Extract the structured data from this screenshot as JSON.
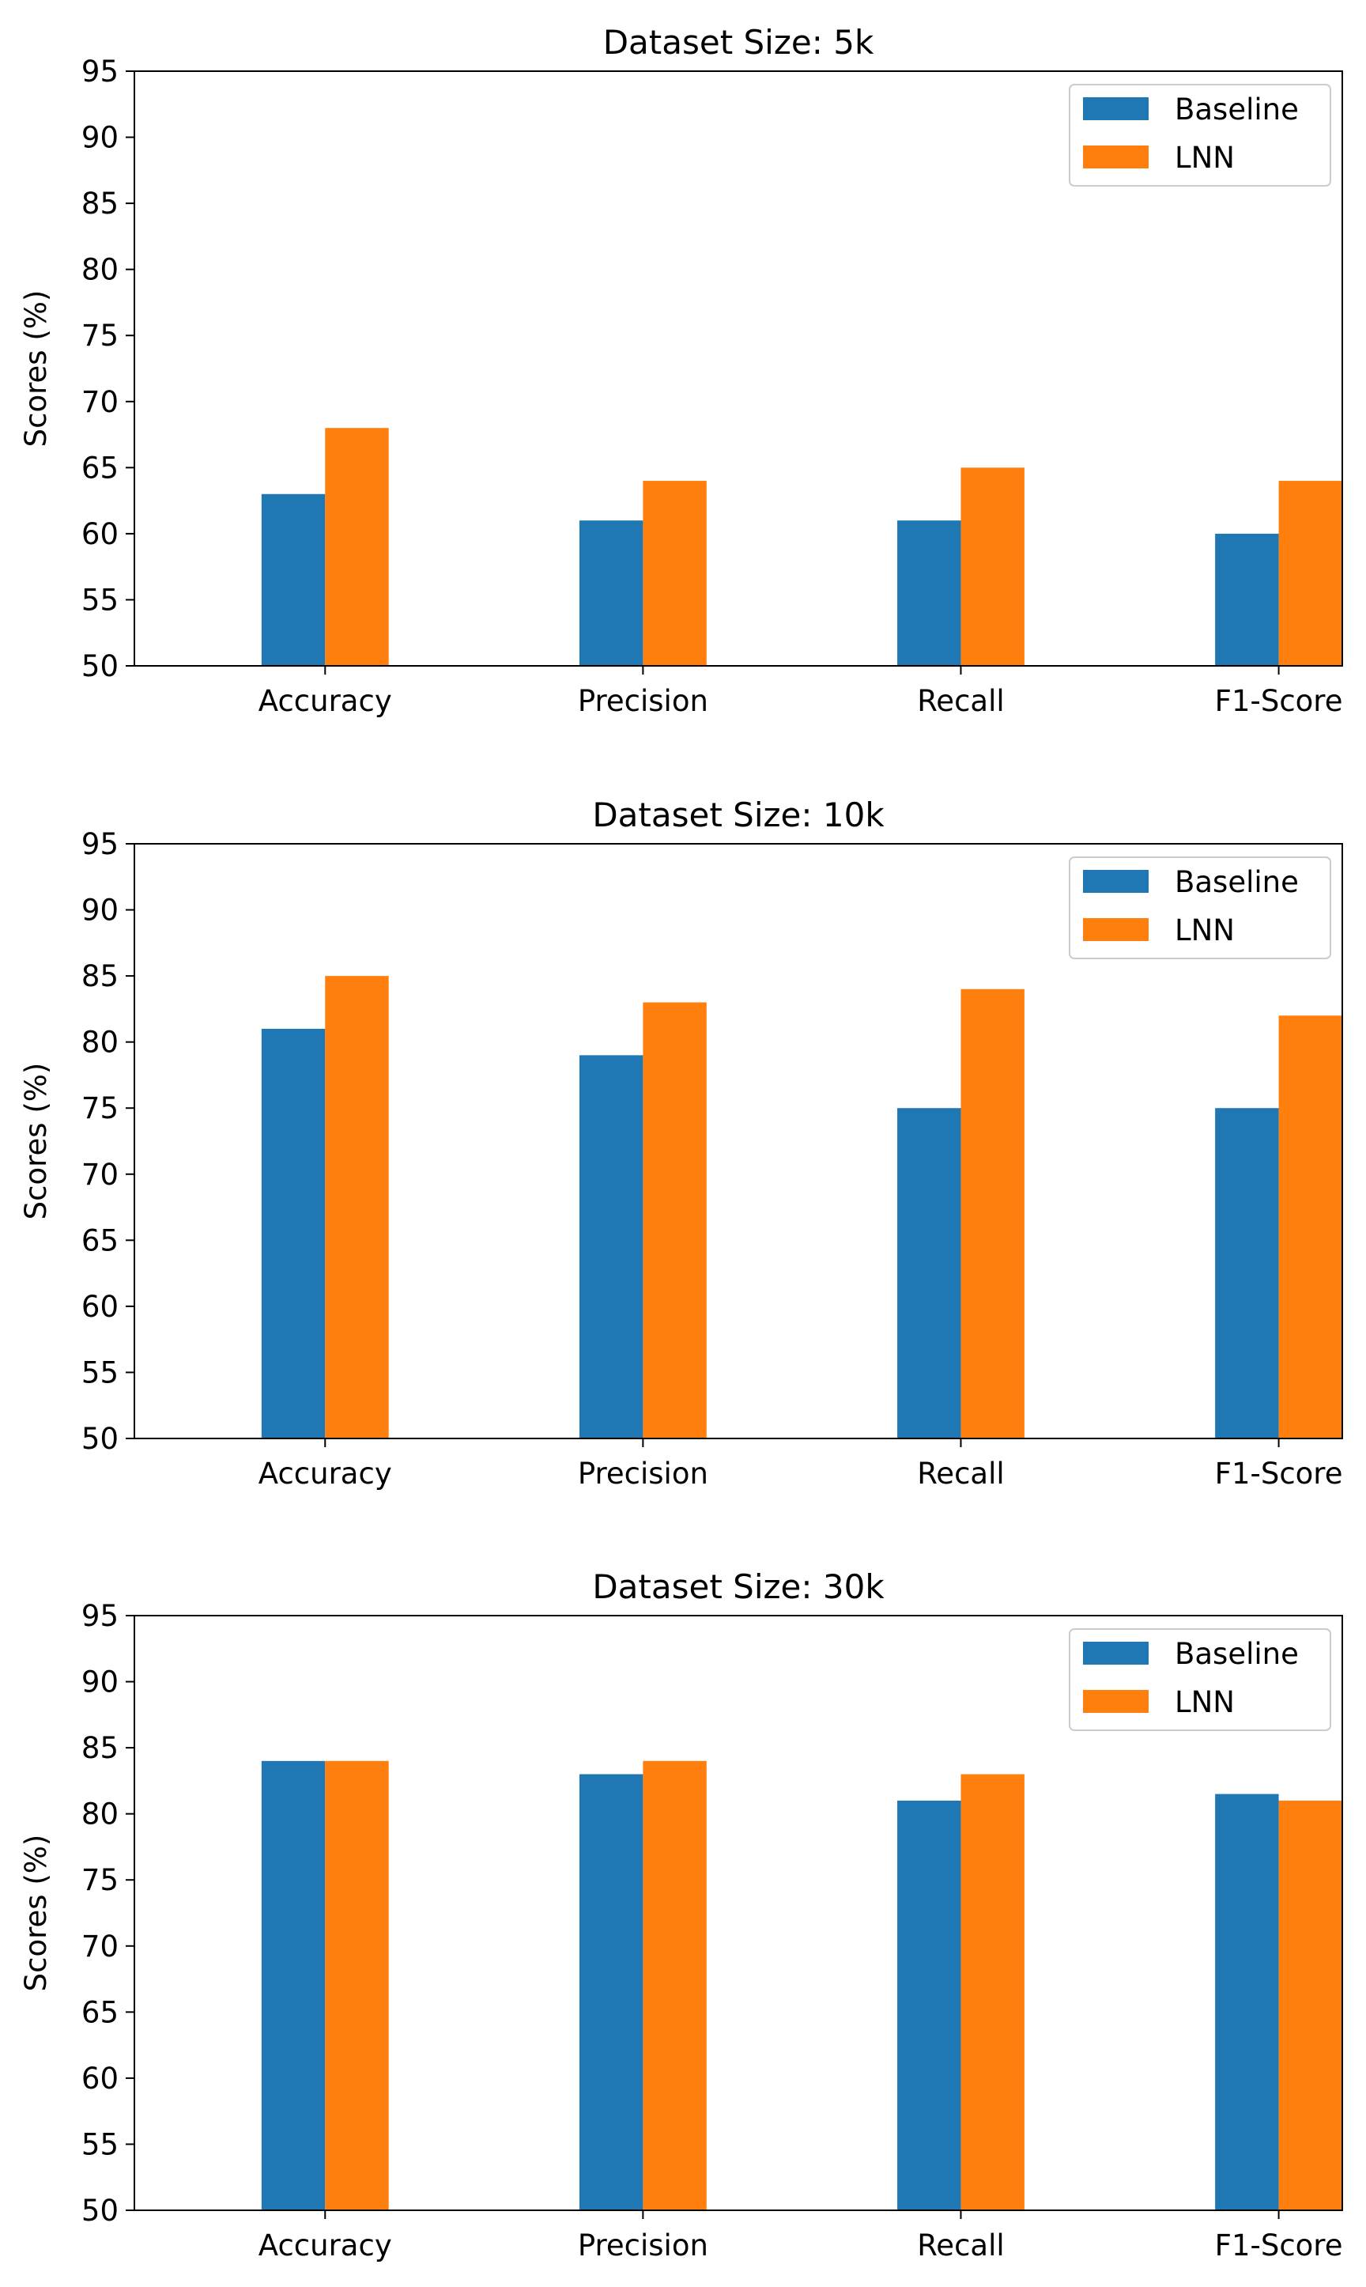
{
  "chart_data": [
    {
      "type": "bar",
      "title": "Dataset Size: 5k",
      "xlabel": "",
      "ylabel": "Scores (%)",
      "categories": [
        "Accuracy",
        "Precision",
        "Recall",
        "F1-Score"
      ],
      "series": [
        {
          "name": "Baseline",
          "values": [
            63,
            61,
            61,
            60
          ]
        },
        {
          "name": "LNN",
          "values": [
            68,
            64,
            65,
            64
          ]
        }
      ],
      "ylim": [
        50,
        95
      ],
      "yticks": [
        50,
        55,
        60,
        65,
        70,
        75,
        80,
        85,
        90,
        95
      ],
      "grid": false,
      "legend": "top-right"
    },
    {
      "type": "bar",
      "title": "Dataset Size: 10k",
      "xlabel": "",
      "ylabel": "Scores (%)",
      "categories": [
        "Accuracy",
        "Precision",
        "Recall",
        "F1-Score"
      ],
      "series": [
        {
          "name": "Baseline",
          "values": [
            81,
            79,
            75,
            75
          ]
        },
        {
          "name": "LNN",
          "values": [
            85,
            83,
            84,
            82
          ]
        }
      ],
      "ylim": [
        50,
        95
      ],
      "yticks": [
        50,
        55,
        60,
        65,
        70,
        75,
        80,
        85,
        90,
        95
      ],
      "grid": false,
      "legend": "top-right"
    },
    {
      "type": "bar",
      "title": "Dataset Size: 30k",
      "xlabel": "",
      "ylabel": "Scores (%)",
      "categories": [
        "Accuracy",
        "Precision",
        "Recall",
        "F1-Score"
      ],
      "series": [
        {
          "name": "Baseline",
          "values": [
            84,
            83,
            81,
            81.5
          ]
        },
        {
          "name": "LNN",
          "values": [
            84,
            84,
            83,
            81
          ]
        }
      ],
      "ylim": [
        50,
        95
      ],
      "yticks": [
        50,
        55,
        60,
        65,
        70,
        75,
        80,
        85,
        90,
        95
      ],
      "grid": false,
      "legend": "top-right"
    }
  ],
  "colors": {
    "Baseline": "#1f77b4",
    "LNN": "#ff7f0e"
  }
}
